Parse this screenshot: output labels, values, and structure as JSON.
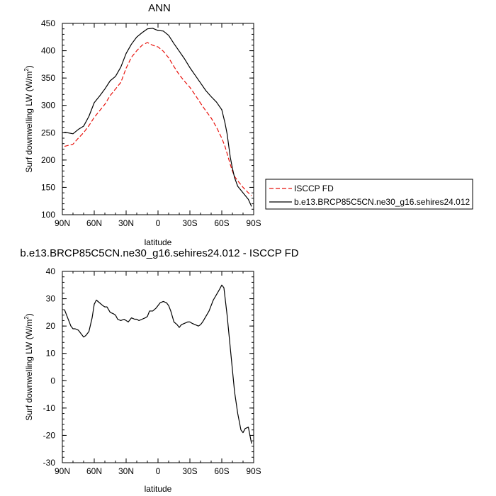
{
  "chart_data": [
    {
      "type": "line",
      "title": "ANN",
      "xlabel": "latitude",
      "ylabel": "Surf downwelling LW (W/m",
      "ylabel_sup": "2",
      "ylabel_end": ")",
      "xlim": [
        90,
        -90
      ],
      "ylim": [
        100,
        450
      ],
      "x_ticks": [
        {
          "value": 90,
          "label": "90N"
        },
        {
          "value": 60,
          "label": "60N"
        },
        {
          "value": 30,
          "label": "30N"
        },
        {
          "value": 0,
          "label": "0"
        },
        {
          "value": -30,
          "label": "30S"
        },
        {
          "value": -60,
          "label": "60S"
        },
        {
          "value": -90,
          "label": "90S"
        }
      ],
      "y_ticks": [
        100,
        150,
        200,
        250,
        300,
        350,
        400,
        450
      ],
      "legend": "outside-right",
      "colors": {
        "ISCCP FD": "#e8120c",
        "b.e13.BRCP85C5CN.ne30_g16.sehires24.012": "#000000"
      },
      "x": [
        88,
        80,
        75,
        70,
        65,
        60,
        55,
        50,
        45,
        40,
        35,
        30,
        25,
        20,
        15,
        10,
        5,
        0,
        -5,
        -10,
        -15,
        -20,
        -25,
        -30,
        -35,
        -40,
        -45,
        -50,
        -55,
        -60,
        -63,
        -65,
        -68,
        -70,
        -72,
        -75,
        -80,
        -85,
        -88
      ],
      "series": [
        {
          "name": "ISCCP FD",
          "style": "dashed",
          "values": [
            225,
            229,
            240,
            250,
            263,
            278,
            290,
            302,
            318,
            330,
            342,
            368,
            388,
            400,
            410,
            415,
            410,
            407,
            399,
            387,
            371,
            356,
            344,
            333,
            319,
            304,
            290,
            277,
            260,
            240,
            225,
            212,
            192,
            180,
            170,
            162,
            150,
            140,
            135
          ]
        },
        {
          "name": "b.e13.BRCP85C5CN.ne30_g16.sehires24.012",
          "style": "solid",
          "values": [
            251,
            248,
            256,
            262,
            280,
            305,
            317,
            330,
            345,
            353,
            370,
            395,
            412,
            425,
            433,
            440,
            441,
            437,
            436,
            428,
            413,
            399,
            385,
            369,
            355,
            341,
            327,
            316,
            306,
            292,
            268,
            248,
            205,
            185,
            168,
            152,
            140,
            128,
            115
          ]
        }
      ]
    },
    {
      "type": "line",
      "title": "b.e13.BRCP85C5CN.ne30_g16.sehires24.012 - ISCCP FD",
      "xlabel": "latitude",
      "ylabel": "Surf downwelling LW (W/m",
      "ylabel_sup": "2",
      "ylabel_end": ")",
      "xlim": [
        90,
        -90
      ],
      "ylim": [
        -30,
        40
      ],
      "x_ticks": [
        {
          "value": 90,
          "label": "90N"
        },
        {
          "value": 60,
          "label": "60N"
        },
        {
          "value": 30,
          "label": "30N"
        },
        {
          "value": 0,
          "label": "0"
        },
        {
          "value": -30,
          "label": "30S"
        },
        {
          "value": -60,
          "label": "60S"
        },
        {
          "value": -90,
          "label": "90S"
        }
      ],
      "y_ticks": [
        -30,
        -20,
        -10,
        0,
        10,
        20,
        30,
        40
      ],
      "series": [
        {
          "style": "solid",
          "x": [
            88,
            85,
            82,
            80,
            78,
            75,
            72,
            70,
            68,
            65,
            62,
            60,
            58,
            55,
            52,
            50,
            48,
            45,
            42,
            40,
            38,
            35,
            32,
            30,
            28,
            25,
            22,
            20,
            18,
            15,
            12,
            10,
            8,
            5,
            2,
            0,
            -2,
            -5,
            -8,
            -10,
            -12,
            -15,
            -18,
            -20,
            -22,
            -25,
            -28,
            -30,
            -32,
            -35,
            -38,
            -40,
            -42,
            -45,
            -48,
            -50,
            -52,
            -55,
            -58,
            -60,
            -62,
            -65,
            -68,
            -70,
            -72,
            -75,
            -78,
            -80,
            -82,
            -85,
            -88
          ],
          "values": [
            26,
            23,
            20,
            19,
            19,
            18.5,
            17,
            16,
            16.5,
            18,
            23,
            28,
            29.5,
            28.5,
            27.5,
            27,
            27,
            25,
            24.5,
            24,
            22.5,
            22,
            22.5,
            22,
            21.5,
            23,
            22.5,
            22.5,
            22,
            22.5,
            23,
            23.5,
            25.5,
            25.5,
            26.5,
            27.5,
            28.5,
            29,
            28.5,
            27.5,
            25.5,
            21.5,
            20.5,
            19.5,
            20.5,
            21,
            21.5,
            21.5,
            21,
            20.5,
            20,
            20.5,
            21.5,
            23.5,
            25.5,
            27.5,
            29.5,
            31.5,
            33.5,
            35,
            34,
            24,
            12,
            4,
            -4,
            -12,
            -18,
            -19,
            -17.5,
            -17,
            -23
          ]
        }
      ]
    }
  ]
}
